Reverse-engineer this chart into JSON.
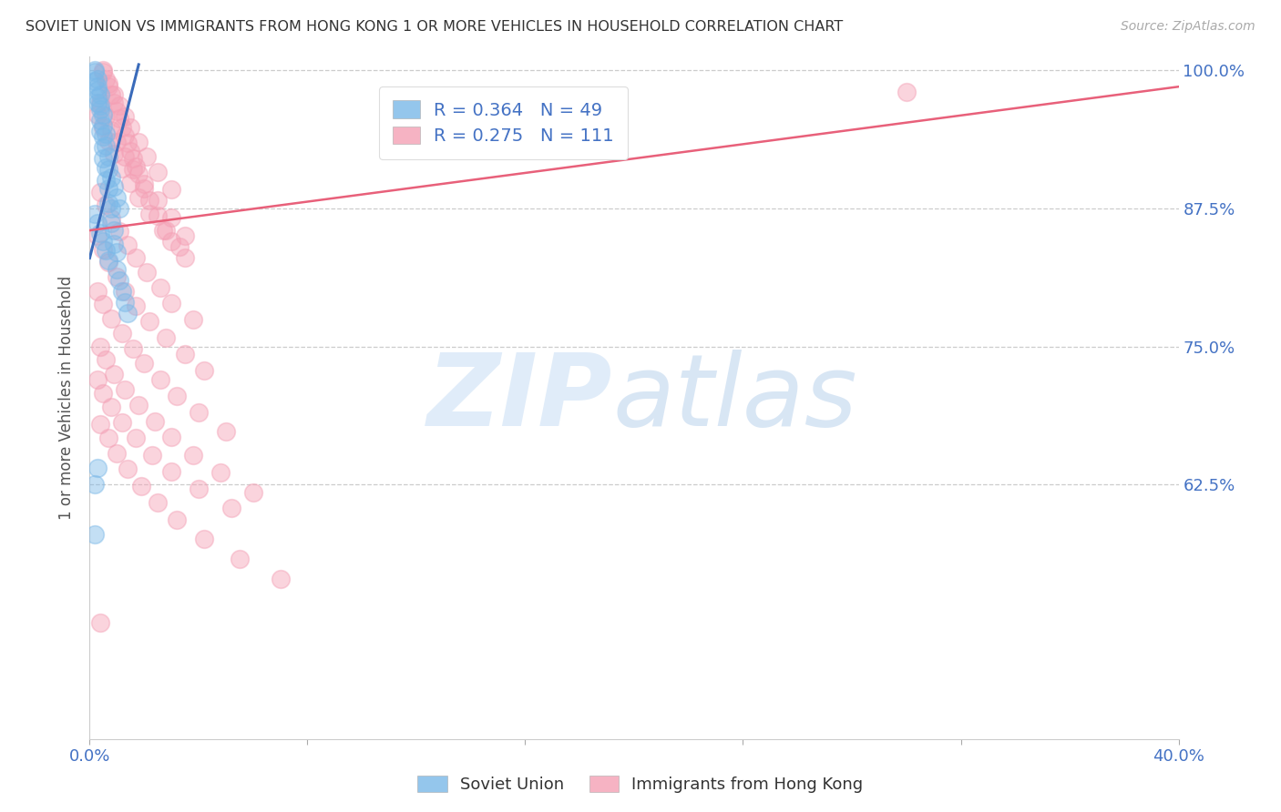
{
  "title": "SOVIET UNION VS IMMIGRANTS FROM HONG KONG 1 OR MORE VEHICLES IN HOUSEHOLD CORRELATION CHART",
  "source": "Source: ZipAtlas.com",
  "ylabel": "1 or more Vehicles in Household",
  "xmin": 0.0,
  "xmax": 0.4,
  "ymin": 0.395,
  "ymax": 1.012,
  "ytick_pos": [
    1.0,
    0.875,
    0.75,
    0.625
  ],
  "ytick_labels": [
    "100.0%",
    "87.5%",
    "75.0%",
    "62.5%"
  ],
  "xtick_pos": [
    0.0,
    0.08,
    0.16,
    0.24,
    0.32,
    0.4
  ],
  "xtick_labels": [
    "0.0%",
    "",
    "",
    "",
    "",
    "40.0%"
  ],
  "legend_blue_label": "R = 0.364   N = 49",
  "legend_pink_label": "R = 0.275   N = 111",
  "legend_label_blue": "Soviet Union",
  "legend_label_pink": "Immigrants from Hong Kong",
  "blue_color": "#7ab8e8",
  "pink_color": "#f4a0b5",
  "blue_line_color": "#3a6bba",
  "pink_line_color": "#e8607a",
  "blue_scatter_x": [
    0.002,
    0.002,
    0.003,
    0.003,
    0.003,
    0.004,
    0.004,
    0.004,
    0.005,
    0.005,
    0.005,
    0.006,
    0.006,
    0.007,
    0.007,
    0.008,
    0.008,
    0.009,
    0.009,
    0.01,
    0.01,
    0.011,
    0.012,
    0.013,
    0.014,
    0.002,
    0.003,
    0.003,
    0.004,
    0.004,
    0.005,
    0.005,
    0.006,
    0.006,
    0.007,
    0.007,
    0.008,
    0.009,
    0.01,
    0.011,
    0.002,
    0.003,
    0.004,
    0.005,
    0.006,
    0.007,
    0.002,
    0.002,
    0.003
  ],
  "blue_scatter_y": [
    1.0,
    0.99,
    0.985,
    0.975,
    0.97,
    0.965,
    0.955,
    0.945,
    0.94,
    0.93,
    0.92,
    0.912,
    0.9,
    0.893,
    0.88,
    0.875,
    0.862,
    0.855,
    0.843,
    0.835,
    0.82,
    0.81,
    0.8,
    0.79,
    0.78,
    0.998,
    0.992,
    0.982,
    0.978,
    0.968,
    0.96,
    0.95,
    0.942,
    0.932,
    0.922,
    0.91,
    0.903,
    0.895,
    0.885,
    0.875,
    0.87,
    0.862,
    0.853,
    0.845,
    0.837,
    0.828,
    0.625,
    0.58,
    0.64
  ],
  "pink_scatter_x": [
    0.005,
    0.006,
    0.007,
    0.008,
    0.009,
    0.01,
    0.011,
    0.012,
    0.013,
    0.014,
    0.015,
    0.016,
    0.017,
    0.018,
    0.02,
    0.022,
    0.025,
    0.028,
    0.03,
    0.035,
    0.005,
    0.007,
    0.009,
    0.011,
    0.013,
    0.015,
    0.018,
    0.021,
    0.025,
    0.03,
    0.004,
    0.006,
    0.008,
    0.01,
    0.013,
    0.016,
    0.02,
    0.025,
    0.03,
    0.035,
    0.003,
    0.005,
    0.007,
    0.009,
    0.012,
    0.015,
    0.018,
    0.022,
    0.027,
    0.033,
    0.004,
    0.006,
    0.008,
    0.011,
    0.014,
    0.017,
    0.021,
    0.026,
    0.03,
    0.038,
    0.003,
    0.005,
    0.007,
    0.01,
    0.013,
    0.017,
    0.022,
    0.028,
    0.035,
    0.042,
    0.003,
    0.005,
    0.008,
    0.012,
    0.016,
    0.02,
    0.026,
    0.032,
    0.04,
    0.05,
    0.004,
    0.006,
    0.009,
    0.013,
    0.018,
    0.024,
    0.03,
    0.038,
    0.048,
    0.06,
    0.003,
    0.005,
    0.008,
    0.012,
    0.017,
    0.023,
    0.03,
    0.04,
    0.052,
    0.3,
    0.004,
    0.007,
    0.01,
    0.014,
    0.019,
    0.025,
    0.032,
    0.042,
    0.055,
    0.07,
    0.004
  ],
  "pink_scatter_y": [
    1.0,
    0.992,
    0.985,
    0.978,
    0.97,
    0.963,
    0.956,
    0.948,
    0.941,
    0.934,
    0.927,
    0.92,
    0.913,
    0.906,
    0.893,
    0.882,
    0.868,
    0.855,
    0.845,
    0.83,
    0.998,
    0.988,
    0.978,
    0.968,
    0.958,
    0.948,
    0.935,
    0.922,
    0.908,
    0.892,
    0.97,
    0.958,
    0.946,
    0.935,
    0.922,
    0.91,
    0.897,
    0.882,
    0.867,
    0.85,
    0.96,
    0.948,
    0.936,
    0.924,
    0.911,
    0.898,
    0.885,
    0.87,
    0.855,
    0.84,
    0.89,
    0.878,
    0.866,
    0.854,
    0.842,
    0.83,
    0.817,
    0.803,
    0.789,
    0.774,
    0.85,
    0.838,
    0.826,
    0.813,
    0.8,
    0.787,
    0.773,
    0.758,
    0.743,
    0.728,
    0.8,
    0.788,
    0.775,
    0.762,
    0.748,
    0.735,
    0.72,
    0.705,
    0.69,
    0.673,
    0.75,
    0.738,
    0.725,
    0.711,
    0.697,
    0.682,
    0.668,
    0.652,
    0.636,
    0.618,
    0.72,
    0.708,
    0.695,
    0.681,
    0.667,
    0.652,
    0.637,
    0.621,
    0.604,
    0.98,
    0.68,
    0.667,
    0.653,
    0.639,
    0.624,
    0.609,
    0.593,
    0.576,
    0.558,
    0.54,
    0.5
  ],
  "blue_line_x": [
    0.0,
    0.018
  ],
  "blue_line_y": [
    0.83,
    1.005
  ],
  "pink_line_x": [
    0.0,
    0.4
  ],
  "pink_line_y": [
    0.855,
    0.985
  ]
}
